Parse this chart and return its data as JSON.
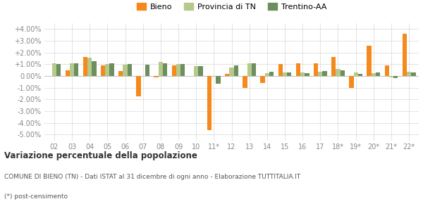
{
  "years": [
    "02",
    "03",
    "04",
    "05",
    "06",
    "07",
    "08",
    "09",
    "10",
    "11*",
    "12",
    "13",
    "14",
    "15",
    "16",
    "17",
    "18*",
    "19*",
    "20*",
    "21*",
    "22*"
  ],
  "bieno": [
    0.0,
    0.5,
    1.6,
    0.9,
    0.4,
    -1.75,
    -0.15,
    0.9,
    0.0,
    -4.65,
    0.2,
    -1.05,
    -0.6,
    1.0,
    1.1,
    1.1,
    1.6,
    -1.05,
    2.55,
    0.9,
    3.6
  ],
  "provincia": [
    1.1,
    1.05,
    1.55,
    1.0,
    0.95,
    0.0,
    1.2,
    1.0,
    0.85,
    -0.05,
    0.7,
    1.05,
    0.25,
    0.3,
    0.3,
    0.35,
    0.6,
    0.3,
    0.25,
    -0.1,
    0.35
  ],
  "trentino": [
    1.0,
    1.1,
    1.25,
    1.1,
    1.0,
    0.95,
    1.1,
    1.0,
    0.85,
    -0.65,
    0.9,
    1.1,
    0.35,
    0.3,
    0.25,
    0.4,
    0.5,
    0.15,
    0.3,
    -0.2,
    0.3
  ],
  "color_bieno": "#f5891c",
  "color_provincia": "#b5c98a",
  "color_trentino": "#6b8f5e",
  "title_bold": "Variazione percentuale della popolazione",
  "subtitle": "COMUNE DI BIENO (TN) - Dati ISTAT al 31 dicembre di ogni anno - Elaborazione TUTTITALIA.IT",
  "footnote": "(*) post-censimento",
  "ylim": [
    -5.5,
    4.5
  ],
  "yticks": [
    -5.0,
    -4.0,
    -3.0,
    -2.0,
    -1.0,
    0.0,
    1.0,
    2.0,
    3.0,
    4.0
  ],
  "ytick_labels": [
    "-5.00%",
    "-4.00%",
    "-3.00%",
    "-2.00%",
    "-1.00%",
    "0.00%",
    "+1.00%",
    "+2.00%",
    "+3.00%",
    "+4.00%"
  ],
  "legend_labels": [
    "Bieno",
    "Provincia di TN",
    "Trentino-AA"
  ],
  "bg_color": "#ffffff",
  "grid_color": "#d8d8d8"
}
